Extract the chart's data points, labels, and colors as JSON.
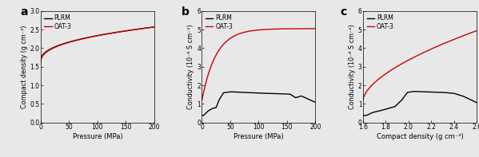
{
  "panel_a": {
    "label": "a",
    "xlabel": "Pressure (MPa)",
    "ylabel": "Compact density (g cm⁻³)",
    "xlim": [
      0,
      200
    ],
    "ylim": [
      0.0,
      3.0
    ],
    "yticks": [
      0.0,
      0.5,
      1.0,
      1.5,
      2.0,
      2.5,
      3.0
    ],
    "xticks": [
      0,
      50,
      100,
      150,
      200
    ],
    "plrm_color": "#000000",
    "oat3_color": "#cc0000",
    "legend_labels": [
      "PLRM",
      "OAT-3"
    ]
  },
  "panel_b": {
    "label": "b",
    "xlabel": "Pressure (MPa)",
    "ylabel": "Conductivity (10⁻⁶ S cm⁻¹)",
    "xlim": [
      0,
      200
    ],
    "ylim": [
      0,
      6
    ],
    "yticks": [
      0,
      1,
      2,
      3,
      4,
      5,
      6
    ],
    "xticks": [
      0,
      50,
      100,
      150,
      200
    ],
    "plrm_color": "#000000",
    "oat3_color": "#cc0000",
    "legend_labels": [
      "PLRM",
      "OAT-3"
    ]
  },
  "panel_c": {
    "label": "c",
    "xlabel": "Compact density (g cm⁻³)",
    "ylabel": "Conductivity (10⁻⁶ S cm⁻¹)",
    "xlim": [
      1.6,
      2.6
    ],
    "ylim": [
      0,
      6
    ],
    "yticks": [
      0,
      1,
      2,
      3,
      4,
      5,
      6
    ],
    "xticks": [
      1.6,
      1.8,
      2.0,
      2.2,
      2.4,
      2.6
    ],
    "plrm_color": "#000000",
    "oat3_color": "#cc0000",
    "legend_labels": [
      "PLRM",
      "OAT-3"
    ]
  },
  "background_color": "#e8e8e8",
  "plot_bg_color": "#e8e8e8",
  "linewidth": 1.0
}
